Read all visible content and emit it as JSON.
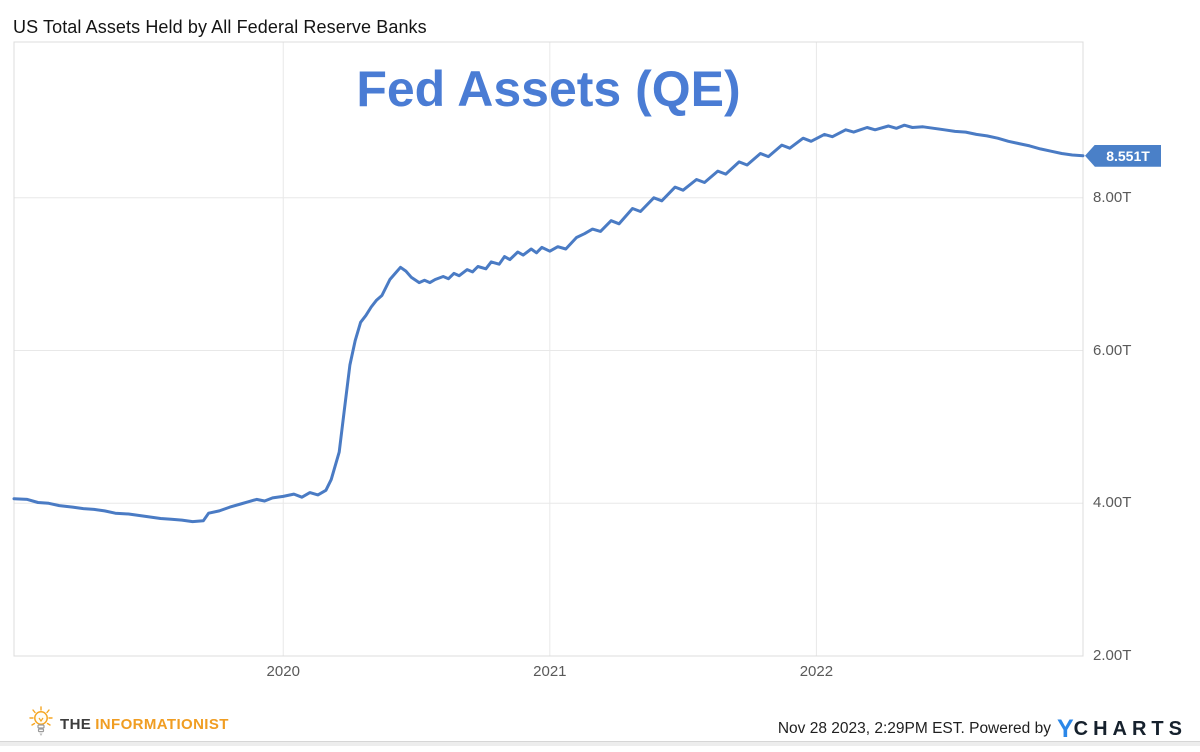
{
  "header": {
    "title": "US Total Assets Held by All Federal Reserve Banks"
  },
  "chart_data": {
    "type": "line",
    "title": "Fed Assets (QE)",
    "series_name": "US Total Assets Held by All Federal Reserve Banks",
    "unit": "USD trillions",
    "grid": true,
    "legend_position": "none",
    "line_color": "#4a7bc4",
    "title_color": "#4a7cd4",
    "badge_color": "#4a80c8",
    "grid_color": "#e8e8e8",
    "border_color": "#dcdcdc",
    "tick_color": "#595959",
    "x_axis": {
      "label": "",
      "min": 2018.99,
      "max": 2023.0,
      "ticks": [
        {
          "v": 2020,
          "label": "2020"
        },
        {
          "v": 2021,
          "label": "2021"
        },
        {
          "v": 2022,
          "label": "2022"
        }
      ]
    },
    "y_axis": {
      "label": "",
      "min": 2.0,
      "max": 10.04,
      "ticks": [
        {
          "v": 2,
          "label": "2.00T"
        },
        {
          "v": 4,
          "label": "4.00T"
        },
        {
          "v": 6,
          "label": "6.00T"
        },
        {
          "v": 8,
          "label": "8.00T"
        }
      ]
    },
    "last_value": 8.551,
    "last_value_label": "8.551T",
    "points": [
      [
        2018.99,
        4.06
      ],
      [
        2019.04,
        4.05
      ],
      [
        2019.08,
        4.01
      ],
      [
        2019.12,
        4.0
      ],
      [
        2019.16,
        3.97
      ],
      [
        2019.21,
        3.95
      ],
      [
        2019.25,
        3.93
      ],
      [
        2019.29,
        3.92
      ],
      [
        2019.33,
        3.9
      ],
      [
        2019.37,
        3.87
      ],
      [
        2019.42,
        3.86
      ],
      [
        2019.46,
        3.84
      ],
      [
        2019.5,
        3.82
      ],
      [
        2019.54,
        3.8
      ],
      [
        2019.58,
        3.79
      ],
      [
        2019.62,
        3.78
      ],
      [
        2019.66,
        3.76
      ],
      [
        2019.7,
        3.77
      ],
      [
        2019.72,
        3.87
      ],
      [
        2019.76,
        3.9
      ],
      [
        2019.8,
        3.95
      ],
      [
        2019.84,
        3.99
      ],
      [
        2019.87,
        4.02
      ],
      [
        2019.9,
        4.05
      ],
      [
        2019.93,
        4.03
      ],
      [
        2019.96,
        4.07
      ],
      [
        2020.0,
        4.09
      ],
      [
        2020.04,
        4.12
      ],
      [
        2020.07,
        4.08
      ],
      [
        2020.1,
        4.14
      ],
      [
        2020.13,
        4.11
      ],
      [
        2020.16,
        4.17
      ],
      [
        2020.18,
        4.31
      ],
      [
        2020.21,
        4.67
      ],
      [
        2020.23,
        5.25
      ],
      [
        2020.25,
        5.81
      ],
      [
        2020.27,
        6.13
      ],
      [
        2020.29,
        6.37
      ],
      [
        2020.31,
        6.46
      ],
      [
        2020.33,
        6.57
      ],
      [
        2020.35,
        6.66
      ],
      [
        2020.37,
        6.72
      ],
      [
        2020.4,
        6.93
      ],
      [
        2020.42,
        7.01
      ],
      [
        2020.44,
        7.09
      ],
      [
        2020.46,
        7.04
      ],
      [
        2020.48,
        6.96
      ],
      [
        2020.51,
        6.89
      ],
      [
        2020.53,
        6.92
      ],
      [
        2020.55,
        6.89
      ],
      [
        2020.57,
        6.93
      ],
      [
        2020.6,
        6.97
      ],
      [
        2020.62,
        6.94
      ],
      [
        2020.64,
        7.01
      ],
      [
        2020.66,
        6.98
      ],
      [
        2020.69,
        7.06
      ],
      [
        2020.71,
        7.03
      ],
      [
        2020.73,
        7.1
      ],
      [
        2020.76,
        7.07
      ],
      [
        2020.78,
        7.16
      ],
      [
        2020.81,
        7.13
      ],
      [
        2020.83,
        7.23
      ],
      [
        2020.85,
        7.19
      ],
      [
        2020.88,
        7.29
      ],
      [
        2020.9,
        7.25
      ],
      [
        2020.93,
        7.33
      ],
      [
        2020.95,
        7.28
      ],
      [
        2020.97,
        7.35
      ],
      [
        2021.0,
        7.3
      ],
      [
        2021.03,
        7.36
      ],
      [
        2021.06,
        7.33
      ],
      [
        2021.1,
        7.48
      ],
      [
        2021.13,
        7.53
      ],
      [
        2021.16,
        7.59
      ],
      [
        2021.19,
        7.56
      ],
      [
        2021.23,
        7.7
      ],
      [
        2021.26,
        7.66
      ],
      [
        2021.31,
        7.86
      ],
      [
        2021.34,
        7.82
      ],
      [
        2021.39,
        8.0
      ],
      [
        2021.42,
        7.96
      ],
      [
        2021.47,
        8.14
      ],
      [
        2021.5,
        8.1
      ],
      [
        2021.55,
        8.24
      ],
      [
        2021.58,
        8.2
      ],
      [
        2021.63,
        8.35
      ],
      [
        2021.66,
        8.31
      ],
      [
        2021.71,
        8.47
      ],
      [
        2021.74,
        8.43
      ],
      [
        2021.79,
        8.58
      ],
      [
        2021.82,
        8.54
      ],
      [
        2021.87,
        8.69
      ],
      [
        2021.9,
        8.65
      ],
      [
        2021.95,
        8.78
      ],
      [
        2021.98,
        8.74
      ],
      [
        2022.03,
        8.83
      ],
      [
        2022.06,
        8.8
      ],
      [
        2022.11,
        8.89
      ],
      [
        2022.14,
        8.86
      ],
      [
        2022.19,
        8.92
      ],
      [
        2022.22,
        8.89
      ],
      [
        2022.27,
        8.94
      ],
      [
        2022.3,
        8.91
      ],
      [
        2022.33,
        8.95
      ],
      [
        2022.36,
        8.92
      ],
      [
        2022.4,
        8.93
      ],
      [
        2022.44,
        8.91
      ],
      [
        2022.48,
        8.89
      ],
      [
        2022.52,
        8.87
      ],
      [
        2022.56,
        8.86
      ],
      [
        2022.6,
        8.83
      ],
      [
        2022.64,
        8.81
      ],
      [
        2022.68,
        8.78
      ],
      [
        2022.72,
        8.74
      ],
      [
        2022.76,
        8.71
      ],
      [
        2022.8,
        8.68
      ],
      [
        2022.84,
        8.64
      ],
      [
        2022.88,
        8.61
      ],
      [
        2022.92,
        8.58
      ],
      [
        2022.96,
        8.56
      ],
      [
        2023.0,
        8.551
      ]
    ]
  },
  "footer": {
    "brand": {
      "icon": "lightbulb-icon",
      "word1": "THE",
      "word2": "INFORMATIONIST",
      "word1_color": "#3d3d3d",
      "word2_color": "#f09d22"
    },
    "attribution": {
      "text": "Nov 28 2023, 2:29PM EST. Powered by",
      "logo_y": "Y",
      "logo_rest": "CHARTS",
      "logo_y_color": "#2b87e8",
      "logo_text_color": "#16212d"
    }
  }
}
